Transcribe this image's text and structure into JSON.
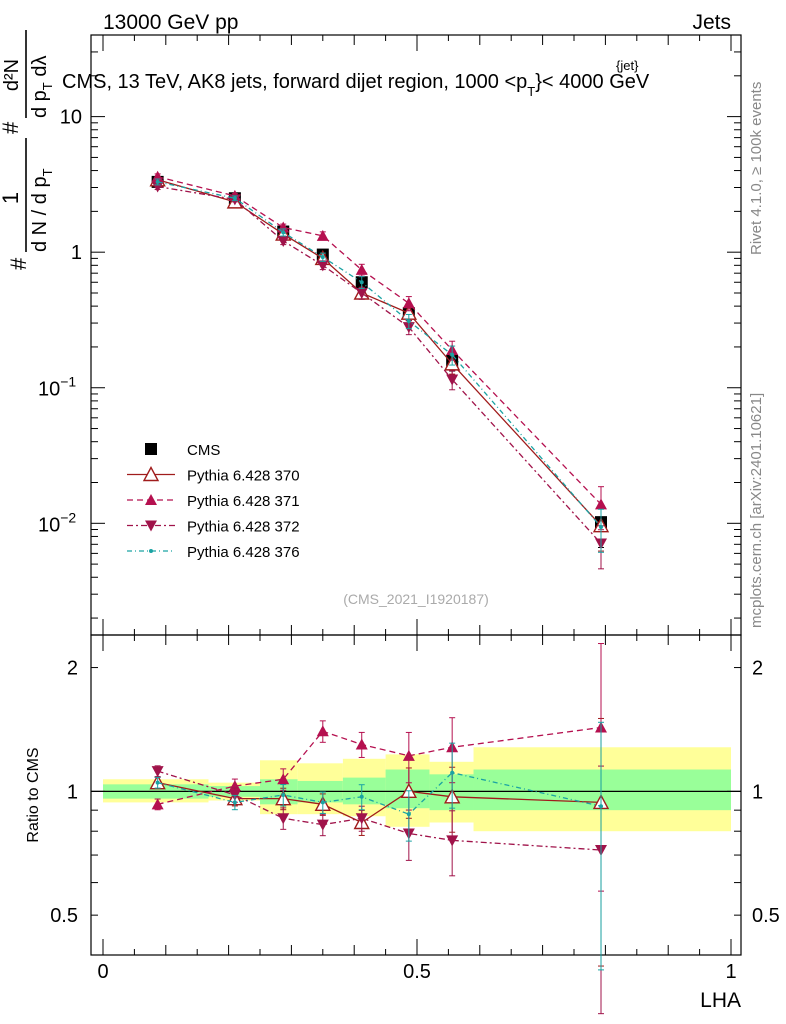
{
  "header": {
    "left": "13000 GeV pp",
    "right": "Jets",
    "plot_title": "CMS, 13 TeV, AK8 jets, forward dijet region, 1000 <p",
    "title_sub": "T",
    "title_sup": "{jet}",
    "title_end": "}< 4000 GeV"
  },
  "ylabel": {
    "hash": "#",
    "frac_num": "1",
    "frac_den": "d N / d p",
    "den_sub": "T",
    "num2": "d²N",
    "den2": "d p",
    "den2_sub": "T",
    "den2_tail": " dλ"
  },
  "watermark": {
    "rivet": "Rivet 4.1.0, ≥ 100k events",
    "mcplots": "mcplots.cern.ch [arXiv:2401.10621]",
    "analysis": "(CMS_2021_I1920187)"
  },
  "colors": {
    "data": "#000000",
    "p370": "#a01c1c",
    "p371": "#b5104f",
    "p372": "#a0134a",
    "p376": "#1aa3a3",
    "band_inner": "#99ff99",
    "band_outer": "#ffff99"
  },
  "chart_data": [
    {
      "type": "line",
      "scale": "log",
      "xlabel": "LHA",
      "xlim": [
        0,
        1
      ],
      "ylim": [
        0.0015,
        40
      ],
      "yticks": [
        {
          "v": 0.01,
          "base": "10",
          "exp": "−2"
        },
        {
          "v": 0.1,
          "base": "10",
          "exp": "−1"
        },
        {
          "v": 1,
          "label": "1"
        },
        {
          "v": 10,
          "label": "10"
        }
      ],
      "x": [
        0.087,
        0.21,
        0.287,
        0.35,
        0.412,
        0.487,
        0.556,
        0.793
      ],
      "series": [
        {
          "name": "CMS",
          "key": "data",
          "values": [
            3.3,
            2.5,
            1.42,
            0.96,
            0.6,
            0.355,
            0.158,
            0.0102
          ]
        },
        {
          "name": "Pythia 6.428 370",
          "key": "p370",
          "values": [
            3.42,
            2.35,
            1.36,
            0.9,
            0.5,
            0.355,
            0.15,
            0.0096
          ]
        },
        {
          "name": "Pythia 6.428 371",
          "key": "p371",
          "values": [
            3.6,
            2.6,
            1.52,
            1.32,
            0.74,
            0.42,
            0.19,
            0.0138
          ]
        },
        {
          "name": "Pythia 6.428 372",
          "key": "p372",
          "values": [
            3.05,
            2.45,
            1.21,
            0.8,
            0.5,
            0.28,
            0.115,
            0.0071
          ]
        },
        {
          "name": "Pythia 6.428 376",
          "key": "p376",
          "values": [
            3.3,
            2.5,
            1.4,
            0.92,
            0.6,
            0.31,
            0.175,
            0.0094
          ]
        }
      ],
      "legend": [
        "CMS",
        "Pythia 6.428 370",
        "Pythia 6.428 371",
        "Pythia 6.428 372",
        "Pythia 6.428 376"
      ],
      "legend_position": "lower-left"
    },
    {
      "type": "line",
      "scale": "log",
      "ylabel": "Ratio to CMS",
      "xlabel": "LHA",
      "xlim": [
        0,
        1
      ],
      "ylim": [
        0.4,
        2.4
      ],
      "yticks": [
        {
          "v": 0.5,
          "label": "0.5"
        },
        {
          "v": 1,
          "label": "1"
        },
        {
          "v": 2,
          "label": "2"
        }
      ],
      "xticks": [
        {
          "v": 0,
          "label": "0"
        },
        {
          "v": 0.5,
          "label": "0.5"
        },
        {
          "v": 1,
          "label": "1"
        }
      ],
      "bands": [
        {
          "x0": 0.0,
          "x1": 0.168,
          "inner": [
            0.96,
            1.04
          ],
          "outer": [
            0.94,
            1.07
          ]
        },
        {
          "x0": 0.168,
          "x1": 0.25,
          "inner": [
            0.97,
            1.03
          ],
          "outer": [
            0.95,
            1.05
          ]
        },
        {
          "x0": 0.25,
          "x1": 0.31,
          "inner": [
            0.93,
            1.07
          ],
          "outer": [
            0.88,
            1.19
          ]
        },
        {
          "x0": 0.31,
          "x1": 0.382,
          "inner": [
            0.94,
            1.06
          ],
          "outer": [
            0.88,
            1.17
          ]
        },
        {
          "x0": 0.382,
          "x1": 0.45,
          "inner": [
            0.93,
            1.08
          ],
          "outer": [
            0.87,
            1.2
          ]
        },
        {
          "x0": 0.45,
          "x1": 0.52,
          "inner": [
            0.91,
            1.13
          ],
          "outer": [
            0.82,
            1.23
          ]
        },
        {
          "x0": 0.52,
          "x1": 0.59,
          "inner": [
            0.9,
            1.1
          ],
          "outer": [
            0.84,
            1.18
          ]
        },
        {
          "x0": 0.59,
          "x1": 1.0,
          "inner": [
            0.9,
            1.13
          ],
          "outer": [
            0.8,
            1.28
          ]
        }
      ],
      "x": [
        0.087,
        0.21,
        0.287,
        0.35,
        0.412,
        0.487,
        0.556,
        0.793
      ],
      "series": [
        {
          "name": "Pythia 6.428 370",
          "key": "p370",
          "values": [
            1.05,
            0.96,
            0.96,
            0.93,
            0.84,
            1.0,
            0.97,
            0.94
          ]
        },
        {
          "name": "Pythia 6.428 371",
          "key": "p371",
          "values": [
            0.93,
            1.03,
            1.07,
            1.4,
            1.3,
            1.22,
            1.28,
            1.43
          ]
        },
        {
          "name": "Pythia 6.428 372",
          "key": "p372",
          "values": [
            1.12,
            0.98,
            0.86,
            0.83,
            0.86,
            0.79,
            0.76,
            0.72
          ]
        },
        {
          "name": "Pythia 6.428 376",
          "key": "p376",
          "values": [
            1.05,
            0.94,
            0.98,
            0.94,
            0.97,
            0.88,
            1.11,
            0.92
          ]
        }
      ]
    }
  ]
}
